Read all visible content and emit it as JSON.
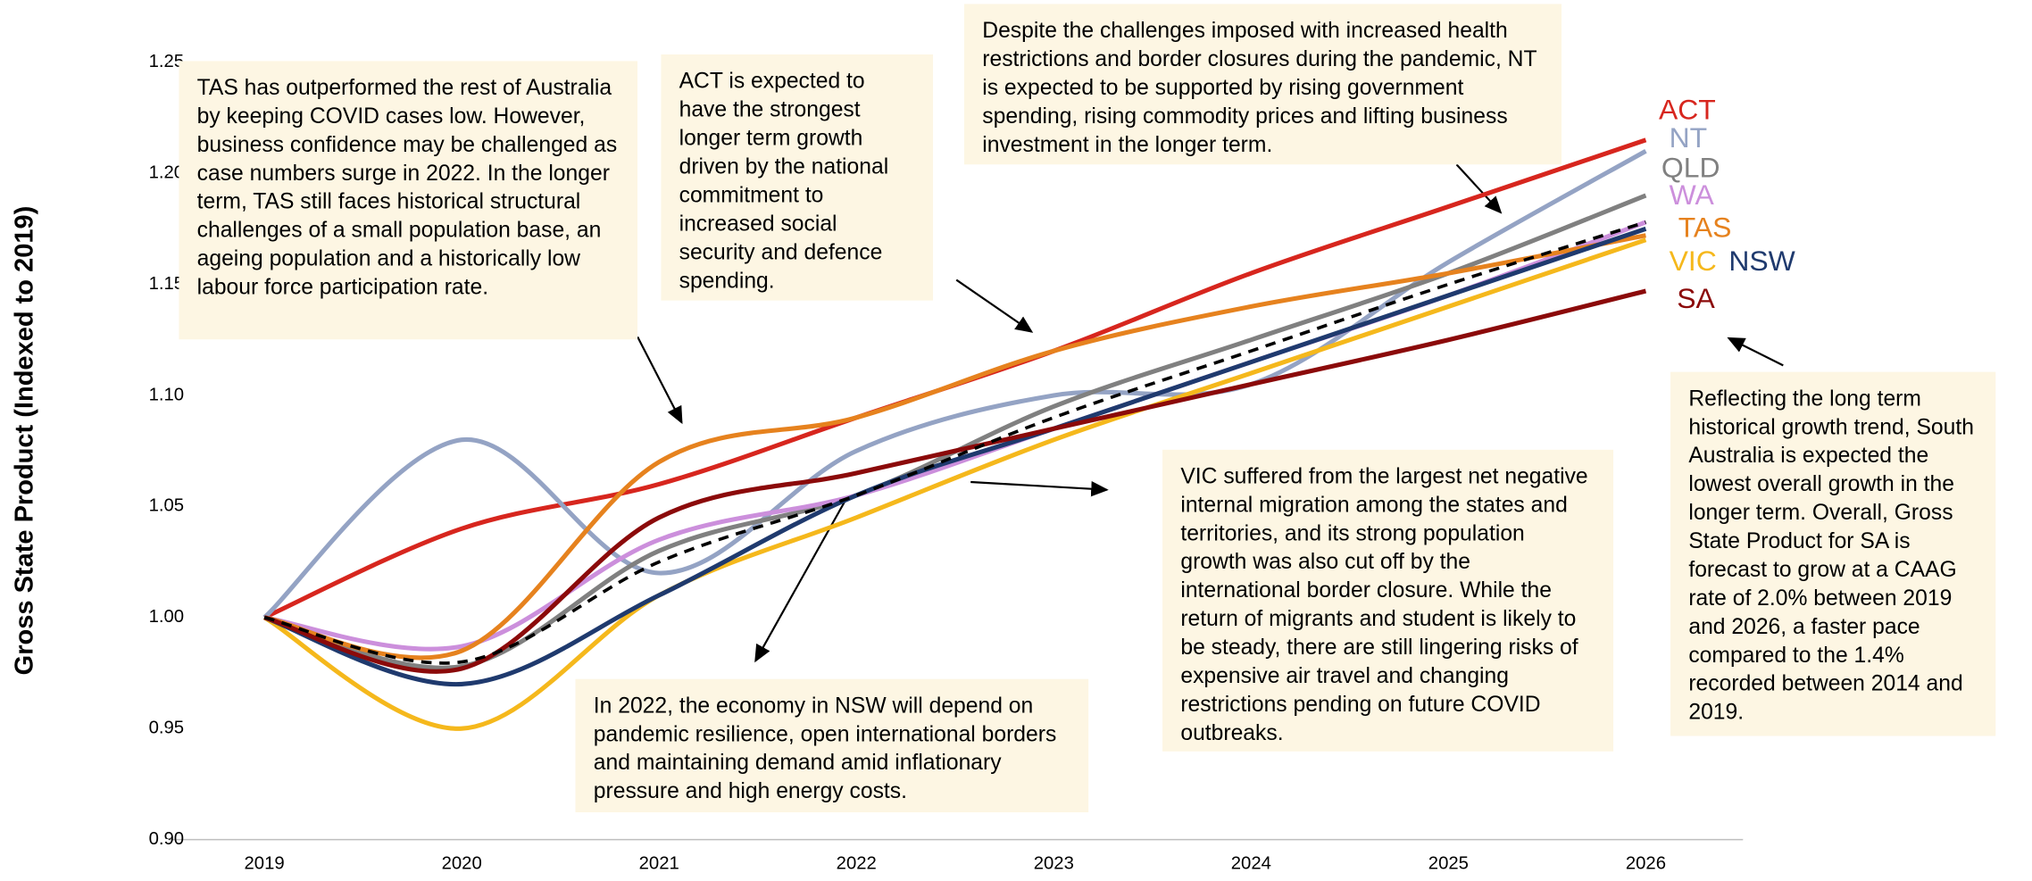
{
  "chart_data": {
    "type": "line",
    "y_label": "Gross State Product (Indexed to 2019)",
    "categories": [
      "2019",
      "2020",
      "2021",
      "2022",
      "2023",
      "2024",
      "2025",
      "2026"
    ],
    "ylim": [
      0.9,
      1.25
    ],
    "yticks": [
      {
        "value": 0.9,
        "label": "0.90"
      },
      {
        "value": 0.95,
        "label": "0.95"
      },
      {
        "value": 1.0,
        "label": "1.00"
      },
      {
        "value": 1.05,
        "label": "1.05"
      },
      {
        "value": 1.1,
        "label": "1.10"
      },
      {
        "value": 1.15,
        "label": "1.15"
      },
      {
        "value": 1.2,
        "label": "1.20"
      },
      {
        "value": 1.25,
        "label": "1.25"
      }
    ],
    "series": [
      {
        "name": "ACT",
        "color": "#d7261e",
        "values": [
          1.0,
          1.04,
          1.06,
          1.09,
          1.12,
          1.155,
          1.185,
          1.215
        ]
      },
      {
        "name": "NT",
        "color": "#94a3c4",
        "values": [
          1.0,
          1.08,
          1.02,
          1.075,
          1.1,
          1.105,
          1.16,
          1.21
        ]
      },
      {
        "name": "QLD",
        "color": "#808080",
        "values": [
          1.0,
          0.978,
          1.03,
          1.055,
          1.095,
          1.125,
          1.155,
          1.19
        ]
      },
      {
        "name": "WA",
        "color": "#cc8fdc",
        "values": [
          1.0,
          0.987,
          1.035,
          1.055,
          1.085,
          1.115,
          1.145,
          1.178
        ]
      },
      {
        "name": "TAS",
        "color": "#e6821e",
        "values": [
          1.0,
          0.985,
          1.07,
          1.09,
          1.12,
          1.14,
          1.155,
          1.172
        ]
      },
      {
        "name": "VIC",
        "color": "#f5b81c",
        "values": [
          1.0,
          0.95,
          1.01,
          1.045,
          1.08,
          1.11,
          1.14,
          1.17
        ]
      },
      {
        "name": "NSW",
        "color": "#1f3a6e",
        "values": [
          1.0,
          0.97,
          1.01,
          1.055,
          1.085,
          1.115,
          1.145,
          1.175
        ]
      },
      {
        "name": "SA",
        "color": "#8b0a0a",
        "values": [
          1.0,
          0.977,
          1.045,
          1.065,
          1.085,
          1.105,
          1.125,
          1.147
        ]
      },
      {
        "color": "#000000",
        "dashed": true,
        "values": [
          1.0,
          0.98,
          1.025,
          1.055,
          1.09,
          1.12,
          1.15,
          1.178
        ]
      }
    ],
    "annotations": [
      "TAS has outperformed the rest of Australia by keeping COVID cases low. However, business confidence may be challenged as case numbers surge in 2022. In the longer term, TAS still faces historical structural challenges of a small population base, an ageing population and a historically low labour force participation rate.",
      "ACT is expected to have the strongest longer term growth driven by the national commitment to increased social security and defence spending.",
      "Despite the challenges imposed with increased health restrictions and border closures during the pandemic, NT is expected to be supported by rising government spending, rising commodity prices and lifting business investment in the longer term.",
      "VIC suffered from the largest net negative internal migration among the states and territories, and its strong population growth was also cut off by the international border closure. While the return of migrants and student is likely to be steady, there are still lingering risks of expensive air travel and changing restrictions pending on future COVID outbreaks.",
      "In 2022, the economy in NSW will depend on pandemic resilience, open international borders and maintaining demand amid inflationary pressure and high energy costs.",
      "Reflecting the long term historical growth trend, South Australia is expected the lowest overall growth in the longer term. Overall, Gross State Product for SA is forecast to grow at a CAAG rate of 2.0% between 2019 and 2026, a faster pace compared to the 1.4% recorded between 2014 and 2019."
    ]
  }
}
